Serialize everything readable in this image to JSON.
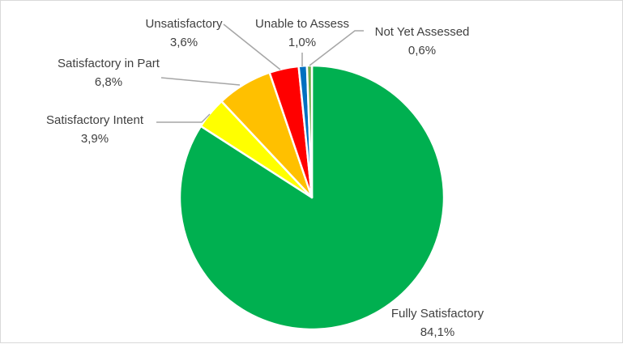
{
  "chart_data": {
    "type": "pie",
    "title": "",
    "slices": [
      {
        "label": "Fully Satisfactory",
        "value": 84.1,
        "display": "84,1%",
        "color": "#00b050"
      },
      {
        "label": "Satisfactory Intent",
        "value": 3.9,
        "display": "3,9%",
        "color": "#ffff00"
      },
      {
        "label": "Satisfactory in Part",
        "value": 6.8,
        "display": "6,8%",
        "color": "#ffc000"
      },
      {
        "label": "Unsatisfactory",
        "value": 3.6,
        "display": "3,6%",
        "color": "#ff0000"
      },
      {
        "label": "Unable to Assess",
        "value": 1.0,
        "display": "1,0%",
        "color": "#0070c0"
      },
      {
        "label": "Not Yet Assessed",
        "value": 0.6,
        "display": "0,6%",
        "color": "#70ad47"
      }
    ],
    "legend": "none",
    "data_labels": "outside-with-leader-lines"
  }
}
